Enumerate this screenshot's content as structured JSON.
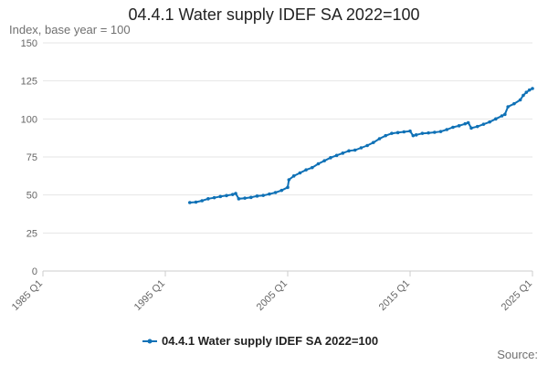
{
  "chart_data": {
    "type": "line",
    "title": "04.4.1 Water supply IDEF SA 2022=100",
    "ylabel": "Index, base year = 100",
    "xlabel": "",
    "source_label": "Source:",
    "ylim": [
      0,
      150
    ],
    "yticks": [
      "0",
      "25",
      "50",
      "75",
      "100",
      "125",
      "150"
    ],
    "xlim": [
      1985.0,
      2025.0
    ],
    "xticks": [
      {
        "label": "1985 Q1",
        "x": 1985.0
      },
      {
        "label": "1995 Q1",
        "x": 1995.0
      },
      {
        "label": "2005 Q1",
        "x": 2005.0
      },
      {
        "label": "2015 Q1",
        "x": 2015.0
      },
      {
        "label": "2025 Q1",
        "x": 2025.0
      }
    ],
    "grid": true,
    "legend_position": "bottom",
    "color": "#0f71b6",
    "series": [
      {
        "name": "04.4.1 Water supply IDEF SA 2022=100",
        "points": [
          [
            1997.0,
            45.0
          ],
          [
            1997.5,
            45.3
          ],
          [
            1998.0,
            46.2
          ],
          [
            1998.5,
            47.5
          ],
          [
            1999.0,
            48.2
          ],
          [
            1999.5,
            49.0
          ],
          [
            2000.0,
            49.6
          ],
          [
            2000.5,
            50.3
          ],
          [
            2000.75,
            51.0
          ],
          [
            2001.0,
            47.5
          ],
          [
            2001.5,
            47.9
          ],
          [
            2002.0,
            48.4
          ],
          [
            2002.5,
            49.3
          ],
          [
            2003.0,
            49.7
          ],
          [
            2003.5,
            50.6
          ],
          [
            2004.0,
            51.6
          ],
          [
            2004.5,
            53.0
          ],
          [
            2005.0,
            55.0
          ],
          [
            2005.1,
            60.0
          ],
          [
            2005.5,
            62.5
          ],
          [
            2006.0,
            64.5
          ],
          [
            2006.5,
            66.5
          ],
          [
            2007.0,
            68.0
          ],
          [
            2007.5,
            70.5
          ],
          [
            2008.0,
            72.5
          ],
          [
            2008.5,
            74.5
          ],
          [
            2009.0,
            76.0
          ],
          [
            2009.5,
            77.5
          ],
          [
            2010.0,
            79.0
          ],
          [
            2010.5,
            79.5
          ],
          [
            2011.0,
            81.0
          ],
          [
            2011.5,
            82.5
          ],
          [
            2012.0,
            84.5
          ],
          [
            2012.5,
            87.0
          ],
          [
            2013.0,
            89.0
          ],
          [
            2013.5,
            90.5
          ],
          [
            2014.0,
            91.0
          ],
          [
            2014.5,
            91.5
          ],
          [
            2015.0,
            92.0
          ],
          [
            2015.25,
            89.0
          ],
          [
            2015.5,
            89.5
          ],
          [
            2016.0,
            90.5
          ],
          [
            2016.5,
            90.8
          ],
          [
            2017.0,
            91.2
          ],
          [
            2017.5,
            91.7
          ],
          [
            2018.0,
            93.0
          ],
          [
            2018.5,
            94.5
          ],
          [
            2019.0,
            95.5
          ],
          [
            2019.5,
            96.8
          ],
          [
            2019.75,
            97.5
          ],
          [
            2020.0,
            94.0
          ],
          [
            2020.5,
            95.0
          ],
          [
            2021.0,
            96.5
          ],
          [
            2021.5,
            98.0
          ],
          [
            2022.0,
            100.0
          ],
          [
            2022.5,
            102.0
          ],
          [
            2022.75,
            103.0
          ],
          [
            2023.0,
            108.0
          ],
          [
            2023.5,
            110.0
          ],
          [
            2024.0,
            112.5
          ],
          [
            2024.25,
            115.5
          ],
          [
            2024.5,
            117.5
          ],
          [
            2024.75,
            119.0
          ],
          [
            2025.0,
            120.0
          ]
        ]
      }
    ]
  }
}
